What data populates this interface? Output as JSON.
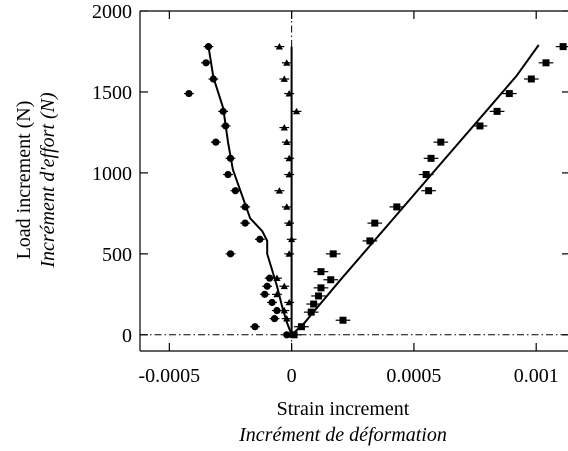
{
  "chart_data": {
    "type": "scatter",
    "xlabel": "Strain increment",
    "xlabel_secondary": "Incrément de déformation",
    "ylabel": "Load increment (N)",
    "ylabel_secondary": "Incrément d'effort (N)",
    "xlim": [
      -0.00062,
      0.00113
    ],
    "ylim": [
      -100,
      2000
    ],
    "x_ticks": [
      {
        "value": -0.0005,
        "label": "-0.0005"
      },
      {
        "value": 0,
        "label": "0"
      },
      {
        "value": 0.0005,
        "label": "0.0005"
      },
      {
        "value": 0.001,
        "label": "0.001"
      }
    ],
    "y_ticks": [
      {
        "value": 0,
        "label": "0"
      },
      {
        "value": 500,
        "label": "500"
      },
      {
        "value": 1000,
        "label": "1000"
      },
      {
        "value": 1500,
        "label": "1500"
      },
      {
        "value": 2000,
        "label": "2000"
      }
    ],
    "reference_lines": {
      "x": 0,
      "y": 0,
      "style": "dash-dot"
    },
    "grid": false,
    "series": [
      {
        "marker": "circle",
        "x_error": 2e-05,
        "points": [
          {
            "x": -0.00034,
            "y": 1780
          },
          {
            "x": -0.00035,
            "y": 1680
          },
          {
            "x": -0.00032,
            "y": 1580
          },
          {
            "x": -0.00042,
            "y": 1490
          },
          {
            "x": -0.00028,
            "y": 1380
          },
          {
            "x": -0.00027,
            "y": 1290
          },
          {
            "x": -0.00031,
            "y": 1190
          },
          {
            "x": -0.00025,
            "y": 1090
          },
          {
            "x": -0.00026,
            "y": 990
          },
          {
            "x": -0.00023,
            "y": 890
          },
          {
            "x": -0.00019,
            "y": 790
          },
          {
            "x": -0.00019,
            "y": 690
          },
          {
            "x": -0.00013,
            "y": 590
          },
          {
            "x": -0.00025,
            "y": 500
          },
          {
            "x": -9e-05,
            "y": 350
          },
          {
            "x": -0.0001,
            "y": 300
          },
          {
            "x": -0.00011,
            "y": 250
          },
          {
            "x": -8e-05,
            "y": 200
          },
          {
            "x": -6e-05,
            "y": 150
          },
          {
            "x": -7e-05,
            "y": 100
          },
          {
            "x": -0.00015,
            "y": 50
          },
          {
            "x": -2e-05,
            "y": 0
          }
        ]
      },
      {
        "marker": "triangle",
        "x_error": 2e-05,
        "points": [
          {
            "x": -5e-05,
            "y": 1780
          },
          {
            "x": -2e-05,
            "y": 1680
          },
          {
            "x": -3e-05,
            "y": 1580
          },
          {
            "x": -1e-05,
            "y": 1490
          },
          {
            "x": 2e-05,
            "y": 1380
          },
          {
            "x": -3e-05,
            "y": 1280
          },
          {
            "x": -2e-05,
            "y": 1190
          },
          {
            "x": -1e-05,
            "y": 1090
          },
          {
            "x": -1e-05,
            "y": 990
          },
          {
            "x": -5e-05,
            "y": 890
          },
          {
            "x": -2e-05,
            "y": 790
          },
          {
            "x": -1e-05,
            "y": 690
          },
          {
            "x": 0.0,
            "y": 590
          },
          {
            "x": -1e-05,
            "y": 500
          },
          {
            "x": -6e-05,
            "y": 350
          },
          {
            "x": -3e-05,
            "y": 300
          },
          {
            "x": -6e-05,
            "y": 250
          },
          {
            "x": -1e-05,
            "y": 200
          },
          {
            "x": -3e-05,
            "y": 150
          },
          {
            "x": -2e-05,
            "y": 100
          },
          {
            "x": 4e-05,
            "y": 50
          },
          {
            "x": 0.0,
            "y": 0
          }
        ]
      },
      {
        "marker": "square",
        "x_error": 3e-05,
        "points": [
          {
            "x": 0.00111,
            "y": 1780
          },
          {
            "x": 0.00104,
            "y": 1680
          },
          {
            "x": 0.00098,
            "y": 1580
          },
          {
            "x": 0.00089,
            "y": 1490
          },
          {
            "x": 0.00084,
            "y": 1380
          },
          {
            "x": 0.00077,
            "y": 1290
          },
          {
            "x": 0.00061,
            "y": 1190
          },
          {
            "x": 0.00057,
            "y": 1090
          },
          {
            "x": 0.00055,
            "y": 990
          },
          {
            "x": 0.00056,
            "y": 890
          },
          {
            "x": 0.00043,
            "y": 790
          },
          {
            "x": 0.00034,
            "y": 690
          },
          {
            "x": 0.00032,
            "y": 580
          },
          {
            "x": 0.00017,
            "y": 500
          },
          {
            "x": 0.00012,
            "y": 390
          },
          {
            "x": 0.00016,
            "y": 340
          },
          {
            "x": 0.00012,
            "y": 290
          },
          {
            "x": 0.00011,
            "y": 240
          },
          {
            "x": 9e-05,
            "y": 190
          },
          {
            "x": 8e-05,
            "y": 140
          },
          {
            "x": 0.00021,
            "y": 90
          },
          {
            "x": 4e-05,
            "y": 50
          },
          {
            "x": 1e-05,
            "y": 0
          }
        ]
      }
    ],
    "lines": [
      {
        "points": [
          {
            "x": -0.00034,
            "y": 1780
          },
          {
            "x": -0.00032,
            "y": 1590
          },
          {
            "x": -0.00028,
            "y": 1400
          },
          {
            "x": -0.00026,
            "y": 1190
          },
          {
            "x": -0.00024,
            "y": 1020
          },
          {
            "x": -0.0002,
            "y": 850
          },
          {
            "x": -0.00017,
            "y": 720
          },
          {
            "x": -0.00012,
            "y": 640
          },
          {
            "x": -0.0001,
            "y": 580
          },
          {
            "x": -0.0001,
            "y": 500
          },
          {
            "x": -8e-05,
            "y": 400
          },
          {
            "x": -6e-05,
            "y": 300
          },
          {
            "x": -4e-05,
            "y": 180
          },
          {
            "x": -2e-05,
            "y": 80
          },
          {
            "x": 0.0,
            "y": 0
          }
        ]
      },
      {
        "points": [
          {
            "x": 0.0,
            "y": 0
          },
          {
            "x": 5e-05,
            "y": 70
          },
          {
            "x": 0.0001,
            "y": 160
          },
          {
            "x": 0.0002,
            "y": 340
          },
          {
            "x": 0.0004,
            "y": 690
          },
          {
            "x": 0.0006,
            "y": 1040
          },
          {
            "x": 0.0008,
            "y": 1390
          },
          {
            "x": 0.00092,
            "y": 1600
          },
          {
            "x": 0.00101,
            "y": 1790
          }
        ]
      },
      {
        "points": [
          {
            "x": 0.0,
            "y": 0
          },
          {
            "x": 0.0,
            "y": 1780
          }
        ]
      }
    ]
  }
}
